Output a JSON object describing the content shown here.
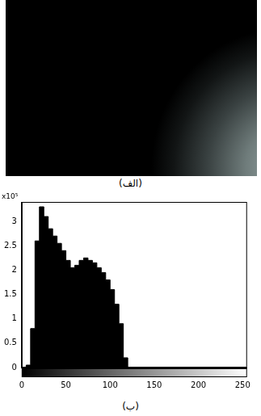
{
  "photo": {
    "caption": "(الف)"
  },
  "chart_data": {
    "type": "histogram",
    "caption": "(ب)",
    "annotation": "x10⁵",
    "color": "#000000",
    "bins": [
      0,
      5,
      10,
      15,
      20,
      25,
      30,
      35,
      40,
      45,
      50,
      55,
      60,
      65,
      70,
      75,
      80,
      85,
      90,
      95,
      100,
      105,
      110,
      115,
      120,
      125,
      130
    ],
    "counts": [
      0,
      0,
      0.05,
      0.8,
      2.6,
      3.3,
      3.1,
      2.85,
      2.7,
      2.55,
      2.4,
      2.2,
      2.05,
      2.1,
      2.2,
      2.25,
      2.2,
      2.15,
      2.05,
      1.95,
      1.8,
      1.6,
      1.3,
      0.9,
      0.2,
      0
    ],
    "xlim": [
      0,
      255
    ],
    "xticks": [
      0,
      50,
      100,
      150,
      200,
      250
    ],
    "ylim": [
      0,
      3.4
    ],
    "yticks": [
      0,
      0.5,
      1,
      1.5,
      2,
      2.5,
      3
    ],
    "grid": false
  }
}
